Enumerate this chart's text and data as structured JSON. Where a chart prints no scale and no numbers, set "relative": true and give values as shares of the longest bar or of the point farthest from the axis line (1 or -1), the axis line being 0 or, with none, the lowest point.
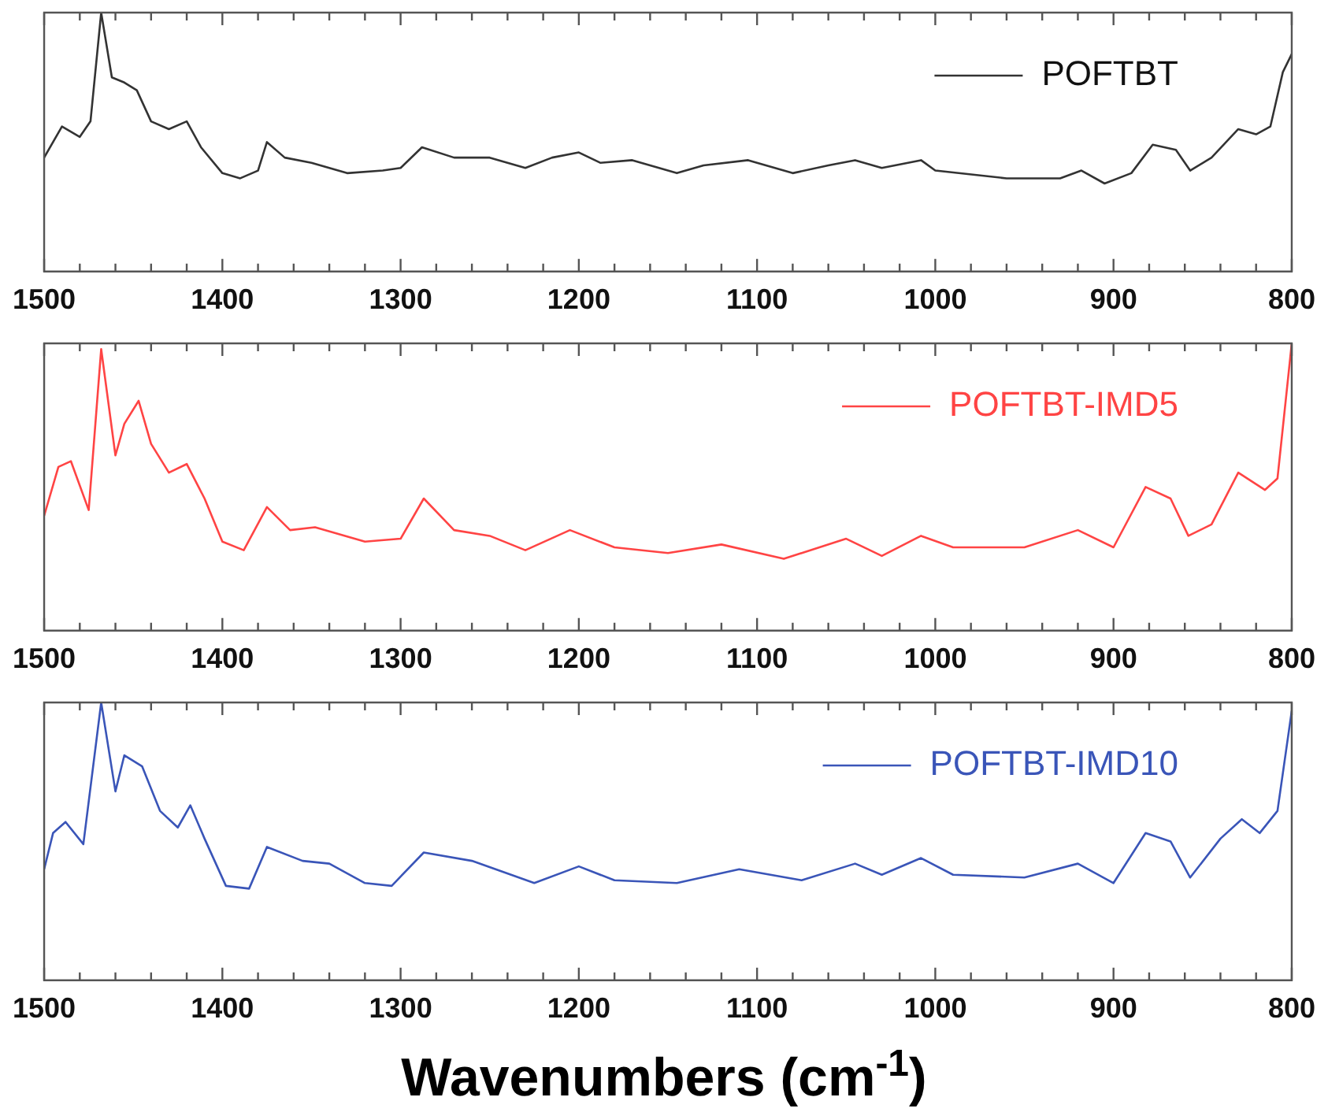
{
  "chart_data": [
    {
      "type": "line",
      "relative": true,
      "legend": "top right",
      "xlim": [
        1500,
        800
      ],
      "xticks": [
        1500,
        1400,
        1300,
        1200,
        1100,
        1000,
        900,
        800
      ],
      "x": [
        1500,
        1490,
        1480,
        1474,
        1468,
        1462,
        1455,
        1448,
        1440,
        1430,
        1420,
        1412,
        1400,
        1390,
        1380,
        1375,
        1365,
        1350,
        1330,
        1310,
        1300,
        1288,
        1270,
        1250,
        1230,
        1215,
        1200,
        1188,
        1170,
        1145,
        1130,
        1105,
        1080,
        1060,
        1045,
        1030,
        1008,
        1000,
        960,
        930,
        918,
        905,
        890,
        878,
        865,
        857,
        845,
        830,
        820,
        812,
        805,
        800
      ],
      "series": [
        {
          "name": "POFTBT",
          "color": "#333333",
          "values": [
            0.44,
            0.56,
            0.52,
            0.58,
            1.0,
            0.75,
            0.73,
            0.7,
            0.58,
            0.55,
            0.58,
            0.48,
            0.38,
            0.36,
            0.39,
            0.5,
            0.44,
            0.42,
            0.38,
            0.39,
            0.4,
            0.48,
            0.44,
            0.44,
            0.4,
            0.44,
            0.46,
            0.42,
            0.43,
            0.38,
            0.41,
            0.43,
            0.38,
            0.41,
            0.43,
            0.4,
            0.43,
            0.39,
            0.36,
            0.36,
            0.39,
            0.34,
            0.38,
            0.49,
            0.47,
            0.39,
            0.44,
            0.55,
            0.53,
            0.56,
            0.77,
            0.84
          ]
        }
      ]
    },
    {
      "type": "line",
      "relative": true,
      "legend": "top right",
      "xlim": [
        1500,
        800
      ],
      "xticks": [
        1500,
        1400,
        1300,
        1200,
        1100,
        1000,
        900,
        800
      ],
      "x": [
        1500,
        1492,
        1485,
        1475,
        1468,
        1460,
        1455,
        1447,
        1440,
        1430,
        1420,
        1410,
        1400,
        1388,
        1375,
        1362,
        1348,
        1320,
        1300,
        1287,
        1270,
        1250,
        1230,
        1205,
        1180,
        1150,
        1120,
        1085,
        1050,
        1030,
        1008,
        990,
        950,
        920,
        900,
        882,
        868,
        858,
        845,
        830,
        815,
        808,
        800
      ],
      "series": [
        {
          "name": "POFTBT-IMD5",
          "color": "#ff4444",
          "values": [
            0.4,
            0.57,
            0.59,
            0.42,
            0.98,
            0.61,
            0.72,
            0.8,
            0.65,
            0.55,
            0.58,
            0.46,
            0.31,
            0.28,
            0.43,
            0.35,
            0.36,
            0.31,
            0.32,
            0.46,
            0.35,
            0.33,
            0.28,
            0.35,
            0.29,
            0.27,
            0.3,
            0.25,
            0.32,
            0.26,
            0.33,
            0.29,
            0.29,
            0.35,
            0.29,
            0.5,
            0.46,
            0.33,
            0.37,
            0.55,
            0.49,
            0.53,
            1.0
          ]
        }
      ]
    },
    {
      "type": "line",
      "relative": true,
      "legend": "top right",
      "xlim": [
        1500,
        800
      ],
      "xticks": [
        1500,
        1400,
        1300,
        1200,
        1100,
        1000,
        900,
        800
      ],
      "xlabel": "Wavenumbers (cm$^{-1}$)",
      "x": [
        1500,
        1495,
        1488,
        1478,
        1468,
        1460,
        1455,
        1445,
        1435,
        1425,
        1418,
        1410,
        1398,
        1385,
        1375,
        1355,
        1340,
        1320,
        1305,
        1287,
        1260,
        1225,
        1200,
        1180,
        1145,
        1110,
        1075,
        1045,
        1030,
        1008,
        990,
        950,
        920,
        900,
        882,
        868,
        857,
        840,
        828,
        818,
        808,
        800
      ],
      "series": [
        {
          "name": "POFTBT-IMD10",
          "color": "#3a55b8",
          "values": [
            0.4,
            0.53,
            0.57,
            0.49,
            1.0,
            0.68,
            0.81,
            0.77,
            0.61,
            0.55,
            0.63,
            0.51,
            0.34,
            0.33,
            0.48,
            0.43,
            0.42,
            0.35,
            0.34,
            0.46,
            0.43,
            0.35,
            0.41,
            0.36,
            0.35,
            0.4,
            0.36,
            0.42,
            0.38,
            0.44,
            0.38,
            0.37,
            0.42,
            0.35,
            0.53,
            0.5,
            0.37,
            0.51,
            0.58,
            0.53,
            0.61,
            0.97
          ]
        }
      ]
    }
  ]
}
